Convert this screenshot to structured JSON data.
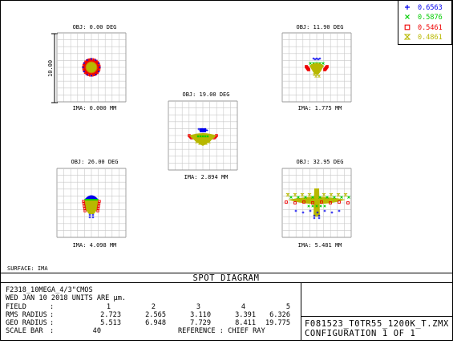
{
  "legend": [
    {
      "wavelength": "0.6563",
      "color": "#0000ee",
      "marker": "+"
    },
    {
      "wavelength": "0.5876",
      "color": "#00cc00",
      "marker": "x"
    },
    {
      "wavelength": "0.5461",
      "color": "#ee0000",
      "marker": "square"
    },
    {
      "wavelength": "0.4861",
      "color": "#b8b800",
      "marker": "hourglass"
    }
  ],
  "scale_label": "10.00",
  "fields": [
    {
      "obj": "OBJ: 0.00 DEG",
      "ima": "IMA: 0.000 MM"
    },
    {
      "obj": "OBJ: 11.90 DEG",
      "ima": "IMA: 1.775 MM"
    },
    {
      "obj": "OBJ: 19.00 DEG",
      "ima": "IMA: 2.894 MM"
    },
    {
      "obj": "OBJ: 26.00 DEG",
      "ima": "IMA: 4.098 MM"
    },
    {
      "obj": "OBJ: 32.95 DEG",
      "ima": "IMA: 5.481 MM"
    }
  ],
  "surface": "SURFACE: IMA",
  "diagram_title": "SPOT DIAGRAM",
  "footer": {
    "lens_name": "F2318_10MEGA_4/3\"CMOS",
    "date_units": "WED JAN 10 2018  UNITS ARE µm.",
    "field_label": "FIELD",
    "rms_label": "RMS RADIUS",
    "geo_label": "GEO RADIUS",
    "scale_bar_label": "SCALE BAR",
    "colon": ":",
    "field_values": [
      "1",
      "2",
      "3",
      "4",
      "5"
    ],
    "rms_values": [
      "2.723",
      "2.565",
      "3.110",
      "3.391",
      "6.326"
    ],
    "geo_values": [
      "5.513",
      "6.948",
      "7.729",
      "8.411",
      "19.775"
    ],
    "scale_bar_value": "40",
    "reference": "REFERENCE  : CHIEF RAY",
    "file_name": "F081523_T0TR55_1200K_T.ZMX",
    "configuration": "CONFIGURATION 1 OF 1"
  }
}
